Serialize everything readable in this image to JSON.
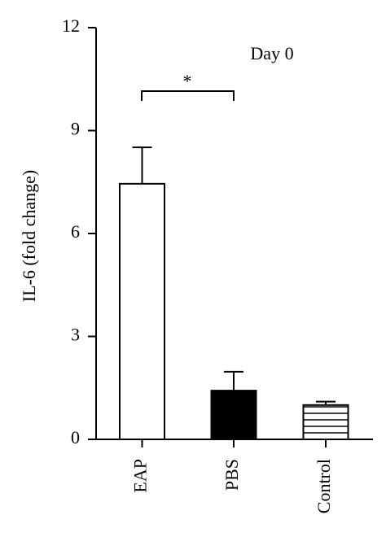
{
  "chart_data": {
    "type": "bar",
    "title": "Day 0",
    "y_label": "IL-6 (fold change)",
    "categories": [
      "EAP",
      "PBS",
      "Control"
    ],
    "values": [
      7.45,
      1.42,
      1.0
    ],
    "errors": [
      1.06,
      0.55,
      0.1
    ],
    "colors": [
      "#ffffff",
      "#000000",
      "#ffffff"
    ],
    "striped": [
      false,
      false,
      true
    ],
    "ylim": [
      0,
      12
    ],
    "yticks": [
      0,
      3,
      6,
      9,
      12
    ],
    "annotation": "*"
  }
}
